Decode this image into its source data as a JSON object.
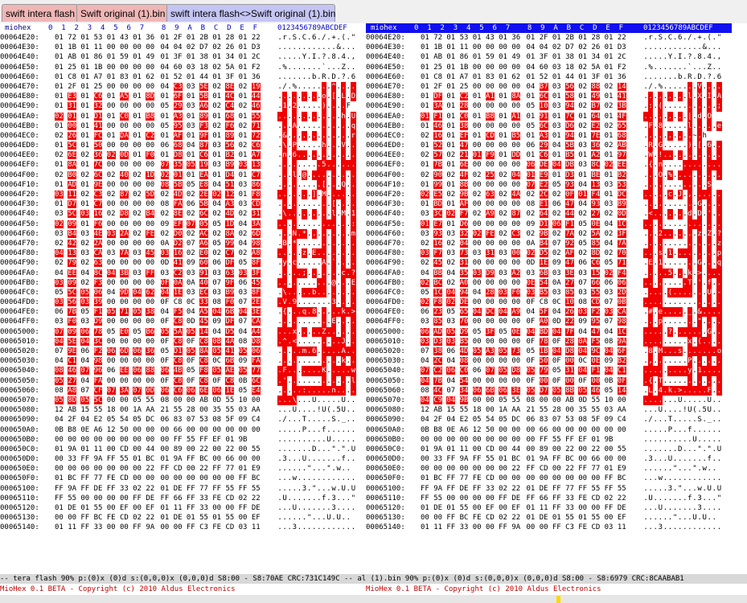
{
  "tabs": [
    {
      "label": "swift intera flash",
      "style": "red"
    },
    {
      "label": "Swift original (1).bin",
      "style": "red"
    },
    {
      "label": "swift intera flash<>Swift original (1).bin",
      "style": "active"
    }
  ],
  "header": {
    "title": "miohex",
    "cols": "0  1  2  3  4  5  6  7    8  9  A  B  C  D  E  F",
    "asc": "0123456789ABCDEF"
  },
  "left": {
    "rows": [
      [
        "00064E20:",
        "01 72 01 53 01 43 01 36 01 2F 01 2B 01 28 01 22",
        ".r.S.C.6./.+.(.\"",
        ""
      ],
      [
        "00064E30:",
        "01 1B 01 11 00 00 00 00 04 04 02 D7 02 26 01 D3",
        "............&...",
        ""
      ],
      [
        "00064E40:",
        "01 AB 01 86 01 59 01 49 01 3F 01 38 01 34 01 2C",
        ".....Y.I.?.8.4.,",
        ""
      ],
      [
        "00064E50:",
        "01 25 01 1B 00 00 00 00 04 60 03 18 02 5A 01 F2",
        ".%.......`...Z..",
        ""
      ],
      [
        "00064E60:",
        "01 C8 01 A7 01 83 01 62 01 52 01 44 01 3F 01 36",
        ".......b.R.D.?.6",
        ""
      ],
      [
        "00064E70:",
        "01 2F 01 25 00 00 00 00 04 C3 03 5E 02 8E 02 19",
        "./.%.......^....",
        "x"
      ],
      [
        "00064E80:",
        "01 E3 01 C6 01 A5 01 8D 01 6F 01 5B 01 4C 01 44",
        ".........o.[.L.D",
        "x"
      ],
      [
        "00064E90:",
        "01 31 01 32 00 00 00 00 05 29 03 A6 02 C4 02 46",
        ".1.2.....)....F",
        "x"
      ],
      [
        "00064EA0:",
        "02 01 01 D1 01 C0 01 B8 01 A3 01 89 01 68 01 55",
        ".............h.U",
        "x"
      ],
      [
        "00064EB0:",
        "01 00 01 41 00 00 00 00 05 95 03 F3 02 F6 02 71",
        "...A...........q",
        "x"
      ],
      [
        "00064EC0:",
        "02 26 01 FC 01 DA 01 C2 01 AF 01 9F 01 89 01 72",
        ".&.............r",
        "x"
      ],
      [
        "00064ED0:",
        "01 5C 01 50 00 00 00 00 06 68 04 87 03 56 02 C6",
        ".\\.P.....h...V..",
        "x"
      ],
      [
        "00064EE0:",
        "02 6E 02 36 02 0D 01 F0 01 D8 01 C6 01 B2 01 A7",
        ".n.6............",
        "x"
      ],
      [
        "00064EF0:",
        "01 8A 01 7C 00 00 00 00 07 35 05 19 03 B9 03 13",
        ".........5......",
        "x"
      ],
      [
        "00064F00:",
        "02 B0 02 6C 02 40 02 1D 02 01 01 EA 01 D4 01 C7",
        "...l.@..........",
        "x"
      ],
      [
        "00064F10:",
        "01 AD 01 9E 00 00 00 00 08 5B 05 E8 04 51 03 86",
        ".........[...Q..",
        "x"
      ],
      [
        "00064F20:",
        "03 11 02 C3 02 87 02 5D 02 4D 02 2E 02 12 01 F8",
        ".......].M......",
        "x"
      ],
      [
        "00064F30:",
        "01 D7 01 C7 00 00 00 00 08 FA 06 5B 04 A3 03 CD",
        "...........[....",
        "x"
      ],
      [
        "00064F40:",
        "03 5C 03 16 02 D8 02 B4 02 8E 02 6C 02 4D 02 31",
        ".\\.........l.M.1",
        "x"
      ],
      [
        "00064F50:",
        "02 09 01 F6 00 00 00 00 09 EF 07 05 05 1D 04 3A",
        "...............:",
        "x"
      ],
      [
        "00064F60:",
        "03 B4 03 4E 03 2A 02 FE 02 D0 02 AC 02 8A 02 6D",
        "...N.*.........m",
        "x"
      ],
      [
        "00064F70:",
        "02 42 02 2A 00 00 00 00 0A D2 07 A6 05 99 04 98",
        ".B.*............",
        "x"
      ],
      [
        "00064F80:",
        "04 13 03 CA 03 7A 03 45 03 16 02 E0 02 C7 02 A8",
        ".....z.E........",
        "x"
      ],
      [
        "00064F90:",
        "02 79 02 63 00 00 00 00 0D 41 09 60 06 DF 05 8F",
        ".y.c.....A.`....",
        "x"
      ],
      [
        "00064FA0:",
        "04 EE 04 8C 04 3B 03 FF 03 C2 03 91 03 63 03 3F",
        ".....;.......c.?",
        "x"
      ],
      [
        "00064FB0:",
        "03 09 02 F3 00 00 00 00 0F 0A 0A 40 07 9F 06 45",
        "...........@...E",
        "x"
      ],
      [
        "00064FC0:",
        "05 5C 05 06 04 9D 04 62 04 1E 03 EC 03 B9 03 8F",
        ".\\.....b........",
        "x"
      ],
      [
        "00064FD0:",
        "03 56 03 39 00 00 00 00 0F C8 0C 33 08 F0 07 2E",
        ".V.9.......3....",
        "x"
      ],
      [
        "00064FE0:",
        "06 7B 05 F1 05 71 05 38 04 F5 04 A5 04 6B 04 3E",
        ".{...q.8.....k.>",
        "x"
      ],
      [
        "00064FF0:",
        "03 F0 03 D9 00 00 00 00 0F C8 0D 45 09 DF 07 CA",
        "...........E....",
        "x"
      ],
      [
        "00065000:",
        "07 09 06 78 05 E0 05 B6 05 5A 05 14 04 D5 04 A4",
        "...x.....Z......",
        "x"
      ],
      [
        "00065010:",
        "04 5E 04 3C 00 00 00 00 0F C8 0F C8 0B 4A 08 D8",
        ".^.<.........J..",
        "x"
      ],
      [
        "00065020:",
        "07 9E 06 F2 06 6D 06 36 05 D1 05 8A 05 41 05 06",
        ".....m.6.....A..",
        "x"
      ],
      [
        "00065030:",
        "04 C1 04 98 00 00 00 00 0F C8 0F C8 0C 6B 09 FA",
        ".............k..",
        "x"
      ],
      [
        "00065040:",
        "08 46 07 96 06 EE 06 88 06 4B 05 F8 05 AE 05 77",
        ".F.......K.....w",
        "x"
      ],
      [
        "00065050:",
        "05 27 04 FA 00 00 00 00 0F C8 0F C8 0F C8 0B 6C",
        ".'.............l",
        "x"
      ],
      [
        "00065060:",
        "08 A8 07 CF 07 3A 07 0D 06 C6 06 6E 06 1E 05 E4",
        ".....:.....n....",
        "x"
      ],
      [
        "00065070:",
        "05 8D 05 5C 00 00 05 55 08 00 00 AB 0D 55 10 00",
        "...\\...U.....U..",
        "x"
      ],
      [
        "00065080:",
        "12 AB 15 55 18 00 1A AA 21 55 28 00 35 55 03 AA",
        "...U....!U(.5U..",
        ""
      ],
      [
        "00065090:",
        "04 2F 04 E2 05 54 05 DC 06 83 07 53 08 5F 09 C4",
        "./...T.....S._..",
        ""
      ],
      [
        "000650A0:",
        "0B B8 0E A6 12 50 00 00 00 66 00 00 00 00 00 00",
        ".....P...f......",
        ""
      ],
      [
        "000650B0:",
        "00 00 00 00 00 00 00 00 00 FF 55 FF EF 01 9B",
        "..........U.....",
        ""
      ],
      [
        "000650C0:",
        "01 9A 01 11 00 CD 00 44 00 89 00 22 00 22 00 55",
        ".......D...\".\".U",
        ""
      ],
      [
        "000650D0:",
        "00 33 FF 9A FF 55 01 BC 01 9A FF BC 00 66 00 00",
        ".3...U.......f..",
        ""
      ],
      [
        "000650E0:",
        "00 00 00 00 00 00 00 22 FF CD 00 22 FF 77 01 E9",
        "......\"...\".w..",
        ""
      ],
      [
        "000650F0:",
        "01 BC FF 77 FE CD 00 00 00 00 00 00 00 00 FF BC",
        "...w............",
        ""
      ],
      [
        "00065100:",
        "FF 9A FF DE FF 33 02 22 01 DE FF 77 FF 55 FF 55",
        ".....3.\"...w.U.U",
        ""
      ],
      [
        "00065110:",
        "FF 55 00 00 00 00 FF DE FF 66 FF 33 FE CD 02 22",
        ".U.......f.3...\"",
        ""
      ],
      [
        "00065120:",
        "01 DE 01 55 00 EF 00 EF 01 11 FF 33 00 00 FF DE",
        "...U.......3....",
        ""
      ],
      [
        "00065130:",
        "00 00 FF BC FE CD 02 22 01 DE 01 55 01 55 00 EF",
        "......\"...U.U..",
        ""
      ],
      [
        "00065140:",
        "01 11 FF 33 00 00 FF 9A 00 00 FF C3 FE CD 03 11",
        "...3............",
        ""
      ]
    ]
  },
  "right": {
    "rows": [
      [
        "00064E20:",
        "01 72 01 53 01 43 01 36 01 2F 01 2B 01 28 01 22",
        ".r.S.C.6./.+.(.\"",
        ""
      ],
      [
        "00064E30:",
        "01 1B 01 11 00 00 00 00 04 04 02 D7 02 26 01 D3",
        "............&...",
        ""
      ],
      [
        "00064E40:",
        "01 AB 01 86 01 59 01 49 01 3F 01 38 01 34 01 2C",
        ".....Y.I.?.8.4.,",
        ""
      ],
      [
        "00064E50:",
        "01 25 01 1B 00 00 00 00 04 60 03 18 02 5A 01 F2",
        ".%.......`...Z..",
        ""
      ],
      [
        "00064E60:",
        "01 C8 01 A7 01 83 01 62 01 52 01 44 01 3F 01 36",
        ".......b.R.D.?.6",
        ""
      ],
      [
        "00064E70:",
        "01 2F 01 25 00 00 00 00 04 B7 03 56 02 88 02 14",
        "./.%.......V....",
        "x"
      ],
      [
        "00064E80:",
        "01 DF 01 C2 01 A1 01 8A 01 6C 01 58 01 49 01 41",
        ".........l.X.I.A",
        "x"
      ],
      [
        "00064E90:",
        "01 3A 01 28 00 00 00 00 05 10 03 94 02 B7 02 3B",
        ".:.(...........;",
        "x"
      ],
      [
        "00064EA0:",
        "01 F1 01 C0 01 B8 01 A1 01 91 01 7C 01 64 01 4F",
        ".........|.d.O",
        "x"
      ],
      [
        "00064EB0:",
        "01 46 01 38 00 00 00 00 05 6C 03 D6 02 E2 02 65",
        ".F.8.....l.....e",
        "x"
      ],
      [
        "00064EC0:",
        "02 16 01 EF 01 CD 01 B5 01 A3 01 94 01 7E 01 68",
        "..........~.h",
        "x"
      ],
      [
        "00064ED0:",
        "01 52 01 47 00 00 00 00 06 29 04 5B 03 36 02 AB",
        ".R.G.....).[.6..",
        "x"
      ],
      [
        "00064EE0:",
        "02 57 02 21 01 F9 01 DD 01 C6 01 B5 01 A2 01 97",
        ".W.!............",
        "x"
      ],
      [
        "00064EF0:",
        "01 7B 01 6E 00 00 00 00 06 DE 04 DB 03 8C 02 EE",
        ".{.n............",
        "x"
      ],
      [
        "00064F00:",
        "02 90 02 4F 02 25 02 04 01 E9 01 D3 01 BE 01 B2",
        "...O.%..........",
        "x"
      ],
      [
        "00064F10:",
        "01 99 01 8B 00 00 00 00 07 E2 05 93 04 13 03 53",
        ".............S",
        "x"
      ],
      [
        "00064F20:",
        "02 E5 02 9B 02 63 02 4A 02 2C 02 0F 01 F4 01 DC",
        ".....c.J.,......",
        "x"
      ],
      [
        "00064F30:",
        "01 BD 01 AF 00 00 00 00 08 E1 06 47 04 93 03 B9",
        "...........G....",
        "x"
      ],
      [
        "00064F40:",
        "03 3C 02 F7 02 A9 02 87 02 64 02 44 02 27 02 0D",
        ".<.......d.D.'..",
        "x"
      ],
      [
        "00064F50:",
        "01 E7 01 D6 00 00 00 00 09 D1 06 F1 05 0E 04 1C",
        "................",
        "x"
      ],
      [
        "00064F60:",
        "03 93 03 32 02 FE 02 C3 02 9B 02 7A 02 5A 02 3F",
        "...2.......z.Z.?",
        "x"
      ],
      [
        "00064F70:",
        "02 16 02 04 00 00 00 00 0A B4 07 92 05 85 04 7A",
        "...............z",
        "x"
      ],
      [
        "00064F80:",
        "03 F7 03 73 03 31 03 00 02 D5 02 AF 02 8D 02 70",
        "...s.1.........p",
        "x"
      ],
      [
        "00064F90:",
        "02 45 02 31 00 00 00 00 0D 1E 09 47 06 C6 05 71",
        ".E.1.......G...q",
        "x"
      ],
      [
        "00064FA0:",
        "04 BB 04 35 03 D9 03 A2 03 6B 03 3E 03 15 02 F4",
        ".....5...k.>....",
        "x"
      ],
      [
        "00064FB0:",
        "02 BC 02 A0 00 00 00 00 0E 54 0A 27 07 66 06 06",
        ".........T.'.f..",
        "x"
      ],
      [
        "00064FC0:",
        "05 1C 04 94 04 28 03 F0 03 B5 03 85 03 55 03 2D",
        ".....(.......U.-",
        "x"
      ],
      [
        "00064FD0:",
        "02 F8 02 DE 00 00 00 00 0F C8 0C 10 08 CD 07 0B",
        "................",
        "x"
      ],
      [
        "00064FE0:",
        "06 23 05 65 04 DC 04 A9 04 5F 04 26 03 F2 03 CA",
        ".#.e....._.&....",
        "x"
      ],
      [
        "00064FF0:",
        "03 85 03 70 00 00 00 00 0F A0 0D 22 09 95 07 98",
        "...p.......\"....",
        "x"
      ],
      [
        "00065000:",
        "06 AD 05 D9 05 3F 05 0E 04 BD 04 7F 04 47 04 1C",
        ".....?.......G..",
        "x"
      ],
      [
        "00065010:",
        "03 D3 03 B5 00 00 00 00 0F 78 0F 28 0A F5 08 9A",
        ".........x.(....",
        "x"
      ],
      [
        "00065020:",
        "07 38 06 4D 05 A3 05 73 05 1B 04 D8 04 9C 04 6F",
        ".8.M...s.......o",
        "x"
      ],
      [
        "00065030:",
        "04 2C 04 08 00 00 00 00 0F 50 0F 00 0C 0E 09 B2",
        ".,.......P......",
        "x"
      ],
      [
        "00065040:",
        "07 C2 06 C0 06 07 05 D8 05 79 05 31 04 F1 04 C1",
        ".........y.1....",
        "x"
      ],
      [
        "00065050:",
        "04 7B 04 54 00 00 00 00 0F 00 0F 00 0F 00 0B 0F",
        ".{.T............",
        "x"
      ],
      [
        "00065060:",
        "08 4C 07 34 06 6B 06 3E 05 D7 05 8B 05 46 05 14",
        ".L.4.k.>.....F..",
        "x"
      ],
      [
        "00065070:",
        "04 C9 04 9B 00 00 05 55 08 00 00 AB 0D 55 10 00",
        ".......U.....U..",
        "x"
      ],
      [
        "00065080:",
        "12 AB 15 55 18 00 1A AA 21 55 28 00 35 55 03 AA",
        "...U....!U(.5U..",
        ""
      ],
      [
        "00065090:",
        "04 2F 04 E2 05 54 05 DC 06 83 07 53 08 5F 09 C4",
        "./...T.....S._..",
        ""
      ],
      [
        "000650A0:",
        "0B B8 0E A6 12 50 00 00 00 66 00 00 00 00 00 00",
        ".....P...f......",
        ""
      ],
      [
        "000650B0:",
        "00 00 00 00 00 00 00 00 00 FF 55 FF EF 01 9B",
        "..........U.....",
        ""
      ],
      [
        "000650C0:",
        "01 9A 01 11 00 CD 00 44 00 89 00 22 00 22 00 55",
        ".......D...\".\".U",
        ""
      ],
      [
        "000650D0:",
        "00 33 FF 9A FF 55 01 BC 01 9A FF BC 00 66 00 00",
        ".3...U.......f..",
        ""
      ],
      [
        "000650E0:",
        "00 00 00 00 00 00 00 22 FF CD 00 22 FF 77 01 E9",
        "......\"...\".w..",
        ""
      ],
      [
        "000650F0:",
        "01 BC FF 77 FE CD 00 00 00 00 00 00 00 00 FF BC",
        "...w............",
        ""
      ],
      [
        "00065100:",
        "FF 9A FF DE FF 33 02 22 01 DE FF 77 FF 55 FF 55",
        ".....3.\"...w.U.U",
        ""
      ],
      [
        "00065110:",
        "FF 55 00 00 00 00 FF DE FF 66 FF 33 FE CD 02 22",
        ".U.......f.3...\"",
        ""
      ],
      [
        "00065120:",
        "01 DE 01 55 00 EF 00 EF 01 11 FF 33 00 00 FF DE",
        "...U.......3....",
        ""
      ],
      [
        "00065130:",
        "00 00 FF BC FE CD 02 22 01 DE 01 55 01 55 00 EF",
        "......\"...U.U..",
        ""
      ],
      [
        "00065140:",
        "01 11 FF 33 00 00 FF 9A 00 00 FF C3 FE CD 03 11",
        "...3............",
        ""
      ]
    ]
  },
  "status": "-- tera flash 90% p:(0)x (0)d s:(0,0,0)x (0,0,0)d S8:00 - S8:70AE CRC:731C149C -- al (1).bin 90% p:(0)x (0)d s:(0,0,0)x (0,0,0)d S8:00 - S8:6979 CRC:8CAABAB1",
  "copyright_left": "MioHex 0.1 BETA - Copyright (c) 2010 Aldus Electronics",
  "copyright_right": "MioHex 0.1 BETA - Copyright (c) 2010 Aldus Electronics",
  "colors": {
    "diff": "#f00000",
    "tab_red": "#f0b6b6",
    "tab_active": "#c5c5f5"
  }
}
